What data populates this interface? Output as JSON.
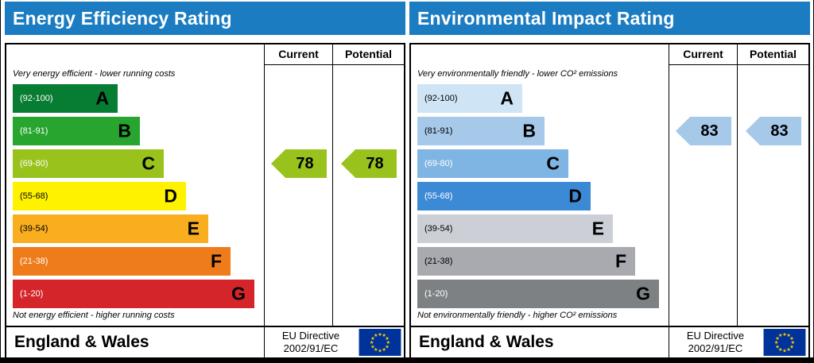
{
  "panels": [
    {
      "title": "Energy Efficiency Rating",
      "header_color": "#1b7cc2",
      "columns": {
        "current": "Current",
        "potential": "Potential"
      },
      "top_caption": "Very energy efficient - lower running costs",
      "bottom_caption": "Not energy efficient - higher running costs",
      "bands": [
        {
          "letter": "A",
          "range": "(92-100)",
          "color": "#077c33"
        },
        {
          "letter": "B",
          "range": "(81-91)",
          "color": "#28a52f"
        },
        {
          "letter": "C",
          "range": "(69-80)",
          "color": "#99c31c"
        },
        {
          "letter": "D",
          "range": "(55-68)",
          "color": "#fff200"
        },
        {
          "letter": "E",
          "range": "(39-54)",
          "color": "#f8ae1e"
        },
        {
          "letter": "F",
          "range": "(21-38)",
          "color": "#ef7c1b"
        },
        {
          "letter": "G",
          "range": "(1-20)",
          "color": "#d4252a"
        }
      ],
      "current": {
        "value": "78",
        "band": "C",
        "band_index": 2,
        "arrow_color": "#99c31c"
      },
      "potential": {
        "value": "78",
        "band": "C",
        "band_index": 2,
        "arrow_color": "#99c31c"
      },
      "footer": {
        "region": "England & Wales",
        "directive_line1": "EU Directive",
        "directive_line2": "2002/91/EC"
      }
    },
    {
      "title": "Environmental Impact Rating",
      "header_color": "#1b7cc2",
      "columns": {
        "current": "Current",
        "potential": "Potential"
      },
      "top_caption": "Very environmentally friendly - lower CO² emissions",
      "bottom_caption": "Not environmentally friendly - higher CO² emissions",
      "bands": [
        {
          "letter": "A",
          "range": "(92-100)",
          "color": "#cfe5f6"
        },
        {
          "letter": "B",
          "range": "(81-91)",
          "color": "#a6c9ea"
        },
        {
          "letter": "C",
          "range": "(69-80)",
          "color": "#7fb5e3"
        },
        {
          "letter": "D",
          "range": "(55-68)",
          "color": "#3c8ad6"
        },
        {
          "letter": "E",
          "range": "(39-54)",
          "color": "#ccd0d6"
        },
        {
          "letter": "F",
          "range": "(21-38)",
          "color": "#a8aab0"
        },
        {
          "letter": "G",
          "range": "(1-20)",
          "color": "#7e8184"
        }
      ],
      "current": {
        "value": "83",
        "band": "B",
        "band_index": 1,
        "arrow_color": "#a6c9ea"
      },
      "potential": {
        "value": "83",
        "band": "B",
        "band_index": 1,
        "arrow_color": "#a6c9ea"
      },
      "footer": {
        "region": "England & Wales",
        "directive_line1": "EU Directive",
        "directive_line2": "2002/91/EC"
      }
    }
  ],
  "eu_flag": {
    "background": "#003399",
    "star_color": "#ffcc00"
  },
  "chart_data": [
    {
      "type": "bar",
      "title": "Energy Efficiency Rating",
      "categories": [
        "A",
        "B",
        "C",
        "D",
        "E",
        "F",
        "G"
      ],
      "band_ranges": [
        "92-100",
        "81-91",
        "69-80",
        "55-68",
        "39-54",
        "21-38",
        "1-20"
      ],
      "series": [
        {
          "name": "Current",
          "value": 78,
          "band": "C"
        },
        {
          "name": "Potential",
          "value": 78,
          "band": "C"
        }
      ],
      "scale": [
        1,
        100
      ],
      "columns": [
        "Current",
        "Potential"
      ]
    },
    {
      "type": "bar",
      "title": "Environmental Impact Rating",
      "categories": [
        "A",
        "B",
        "C",
        "D",
        "E",
        "F",
        "G"
      ],
      "band_ranges": [
        "92-100",
        "81-91",
        "69-80",
        "55-68",
        "39-54",
        "21-38",
        "1-20"
      ],
      "series": [
        {
          "name": "Current",
          "value": 83,
          "band": "B"
        },
        {
          "name": "Potential",
          "value": 83,
          "band": "B"
        }
      ],
      "scale": [
        1,
        100
      ],
      "columns": [
        "Current",
        "Potential"
      ]
    }
  ]
}
